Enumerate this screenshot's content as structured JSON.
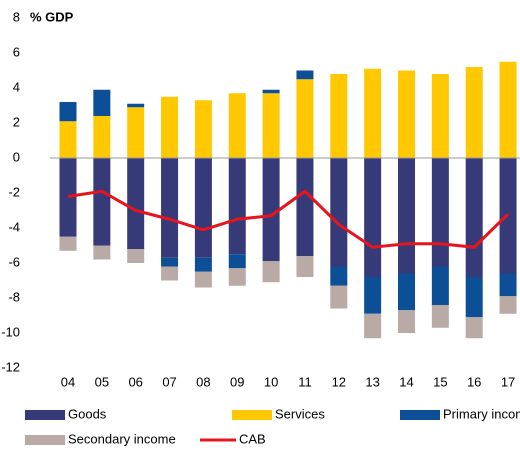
{
  "chart_data": {
    "type": "bar",
    "stacked": true,
    "y_label": "% GDP",
    "categories": [
      "04",
      "05",
      "06",
      "07",
      "08",
      "09",
      "10",
      "11",
      "12",
      "13",
      "14",
      "15",
      "16",
      "17"
    ],
    "series": [
      {
        "name": "Goods",
        "color": "#363a78",
        "values": [
          -4.5,
          -5.0,
          -5.2,
          -5.7,
          -5.7,
          -5.5,
          -5.9,
          -5.6,
          -6.2,
          -6.8,
          -6.6,
          -6.2,
          -6.8,
          -6.6
        ]
      },
      {
        "name": "Services",
        "color": "#ffc800",
        "values": [
          2.1,
          2.4,
          2.9,
          3.5,
          3.3,
          3.7,
          3.7,
          4.5,
          4.8,
          5.1,
          5.0,
          4.8,
          5.2,
          5.5
        ]
      },
      {
        "name": "Primary income",
        "color": "#0d4f96",
        "values": [
          1.1,
          1.5,
          0.2,
          -0.5,
          -0.8,
          -0.8,
          0.2,
          0.5,
          -1.1,
          -2.1,
          -2.1,
          -2.2,
          -2.3,
          -1.3
        ]
      },
      {
        "name": "Secondary income",
        "color": "#b9aaa5",
        "values": [
          -0.8,
          -0.8,
          -0.8,
          -0.8,
          -0.9,
          -1.0,
          -1.2,
          -1.2,
          -1.3,
          -1.4,
          -1.3,
          -1.3,
          -1.2,
          -1.0
        ]
      },
      {
        "name": "CAB",
        "type": "line",
        "color": "#e8141c",
        "values": [
          -2.2,
          -1.9,
          -3.0,
          -3.5,
          -4.1,
          -3.5,
          -3.3,
          -1.9,
          -3.8,
          -5.1,
          -4.9,
          -4.9,
          -5.1,
          -3.2
        ]
      }
    ],
    "ylim": [
      -12,
      8
    ],
    "yticks": [
      -12,
      -10,
      -8,
      -6,
      -4,
      -2,
      0,
      2,
      4,
      6,
      8
    ],
    "grid": false,
    "legend": "bottom"
  }
}
